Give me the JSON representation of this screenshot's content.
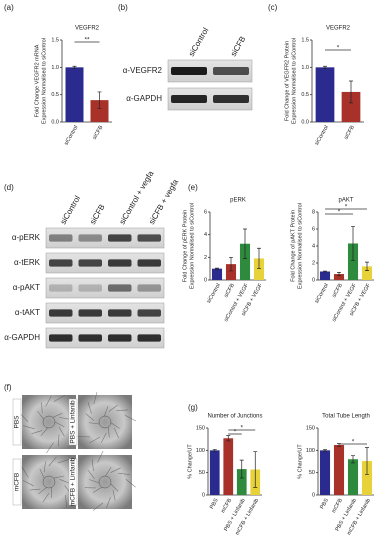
{
  "chart_data": [
    {
      "type": "bar",
      "title": "VEGFR2",
      "ylabel": [
        "Fold Change VEGFR2 mRNA",
        "Expression Normalised to siControl"
      ],
      "categories": [
        "siControl",
        "siCFB"
      ],
      "values": [
        1.0,
        0.4
      ],
      "errors": [
        0.02,
        0.15
      ],
      "colors": [
        "#2b2b8f",
        "#a8322a"
      ],
      "ylim": [
        0,
        1.5
      ],
      "yticks": [
        {
          "value": 0,
          "label": "0.0"
        },
        {
          "value": 0.5,
          "label": "0.5"
        },
        {
          "value": 1,
          "label": "1.0"
        },
        {
          "value": 1.5,
          "label": "1.5"
        }
      ],
      "annotations": [
        "**"
      ]
    },
    {
      "type": "bar",
      "title": "VEGFR2",
      "ylabel": [
        "Fold Change of VEGFR2 Protein",
        "Expression Normalised to siControl"
      ],
      "categories": [
        "siControl",
        "siCFB"
      ],
      "values": [
        1.0,
        0.55
      ],
      "errors": [
        0.02,
        0.2
      ],
      "colors": [
        "#2b2b8f",
        "#a8322a"
      ],
      "ylim": [
        0,
        1.5
      ],
      "yticks": [
        {
          "value": 0,
          "label": "0.0"
        },
        {
          "value": 0.5,
          "label": "0.5"
        },
        {
          "value": 1,
          "label": "1.0"
        },
        {
          "value": 1.5,
          "label": "1.5"
        }
      ],
      "annotations": [
        "*"
      ]
    },
    {
      "type": "bar",
      "title": "pERK",
      "ylabel": [
        "Fold Change of pERK Protein",
        "Expression Normalised to siControl"
      ],
      "categories": [
        "siControl",
        "siCFB",
        "siControl + VEGF",
        "siCFB + VEGF"
      ],
      "values": [
        1.0,
        1.4,
        3.2,
        1.9
      ],
      "errors": [
        0.05,
        0.6,
        1.3,
        0.9
      ],
      "colors": [
        "#2b2b8f",
        "#a8322a",
        "#2e8b3e",
        "#e8d23a"
      ],
      "ylim": [
        0,
        6
      ],
      "yticks": [
        0,
        2,
        4,
        6
      ],
      "annotations": []
    },
    {
      "type": "bar",
      "title": "pAKT",
      "ylabel": [
        "Fold Change of pAKT Protein",
        "Expression Normalised to siControl"
      ],
      "categories": [
        "siControl",
        "siCFB",
        "siControl + VEGF",
        "siCFB + VEGF"
      ],
      "values": [
        1.0,
        0.7,
        4.3,
        1.6
      ],
      "errors": [
        0.05,
        0.2,
        2.0,
        0.5
      ],
      "colors": [
        "#2b2b8f",
        "#a8322a",
        "#2e8b3e",
        "#e8d23a"
      ],
      "ylim": [
        0,
        8
      ],
      "yticks": [
        0,
        2,
        4,
        6,
        8
      ],
      "annotations": [
        "*",
        "*"
      ]
    },
    {
      "type": "bar",
      "title": "Number of Junctions",
      "ylabel": [
        "% Change/UT"
      ],
      "categories": [
        "PBS",
        "mCFB",
        "PBS + Linfanib",
        "mCFB + Linfanib"
      ],
      "values": [
        100,
        127,
        58,
        57
      ],
      "errors": [
        2,
        6,
        20,
        40
      ],
      "colors": [
        "#2b2b8f",
        "#a8322a",
        "#2e8b3e",
        "#e8d23a"
      ],
      "ylim": [
        0,
        150
      ],
      "yticks": [
        0,
        50,
        100,
        150
      ],
      "annotations": [
        "*",
        "*"
      ]
    },
    {
      "type": "bar",
      "title": "Total Tube Length",
      "ylabel": [
        "% Change/UT"
      ],
      "categories": [
        "PBS",
        "mCFB",
        "PBS + Linfanib",
        "mCFB + Linfanib"
      ],
      "values": [
        100,
        112,
        80,
        76
      ],
      "errors": [
        2,
        3,
        8,
        30
      ],
      "colors": [
        "#2b2b8f",
        "#a8322a",
        "#2e8b3e",
        "#e8d23a"
      ],
      "ylim": [
        0,
        150
      ],
      "yticks": [
        0,
        50,
        100,
        150
      ],
      "annotations": [
        "*"
      ]
    }
  ],
  "panel_labels": [
    "(a)",
    "(b)",
    "(c)",
    "(d)",
    "(e)",
    "(f)",
    "(g)"
  ],
  "blots": [
    {
      "lanes": [
        "siControl",
        "siCFB"
      ],
      "rows": [
        "α-VEGFR2",
        "α-GAPDH"
      ]
    },
    {
      "lanes": [
        "siControl",
        "siCFB",
        "siControl + vegfa",
        "siCFB + vegfa"
      ],
      "rows": [
        "α-pERK",
        "α-tERK",
        "α-pAKT",
        "α-tAKT",
        "α-GAPDH"
      ]
    }
  ],
  "images": {
    "labels": [
      "PBS",
      "PBS + Linfanib",
      "mCFB",
      "mCFB + Linfanib"
    ]
  }
}
